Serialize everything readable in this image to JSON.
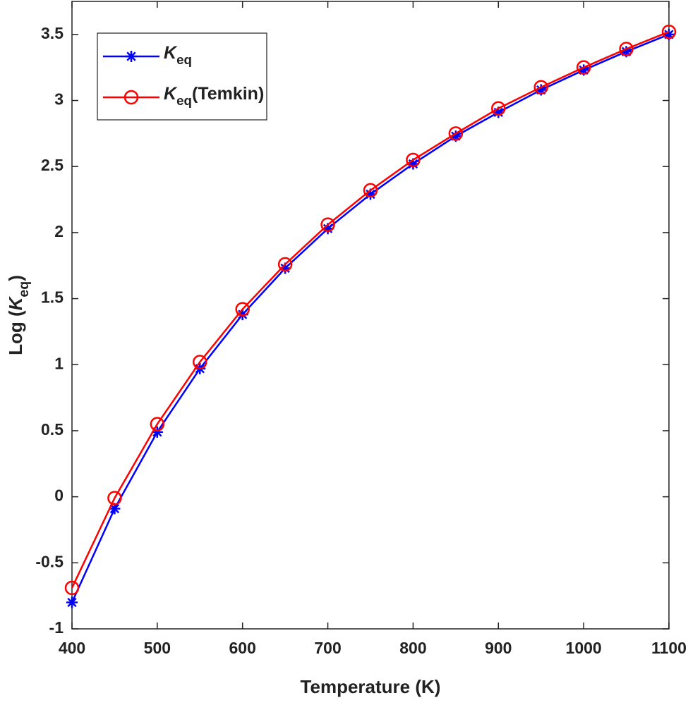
{
  "chart_data": {
    "type": "line",
    "x_label": "Temperature (K)",
    "y_label": "Log (Keq)",
    "x": [
      400,
      450,
      500,
      550,
      600,
      650,
      700,
      750,
      800,
      850,
      900,
      950,
      1000,
      1050,
      1100
    ],
    "series": [
      {
        "name": "Keq",
        "color": "#0000ff",
        "marker": "asterisk",
        "values": [
          -0.8,
          -0.09,
          0.49,
          0.97,
          1.38,
          1.73,
          2.03,
          2.29,
          2.52,
          2.73,
          2.91,
          3.08,
          3.23,
          3.37,
          3.5
        ]
      },
      {
        "name": "Keq(Temkin)",
        "color": "#ff0000",
        "marker": "circle",
        "values": [
          -0.69,
          -0.01,
          0.55,
          1.02,
          1.42,
          1.76,
          2.06,
          2.32,
          2.55,
          2.75,
          2.94,
          3.1,
          3.25,
          3.39,
          3.52
        ]
      }
    ],
    "xlim": [
      400,
      1100
    ],
    "xticks": [
      400,
      500,
      600,
      700,
      800,
      900,
      1000,
      1100
    ],
    "ylim": [
      -1,
      3.75
    ],
    "yticks": [
      -1,
      -0.5,
      0,
      0.5,
      1,
      1.5,
      2,
      2.5,
      3,
      3.5
    ],
    "grid": false,
    "legend": "upper left"
  }
}
